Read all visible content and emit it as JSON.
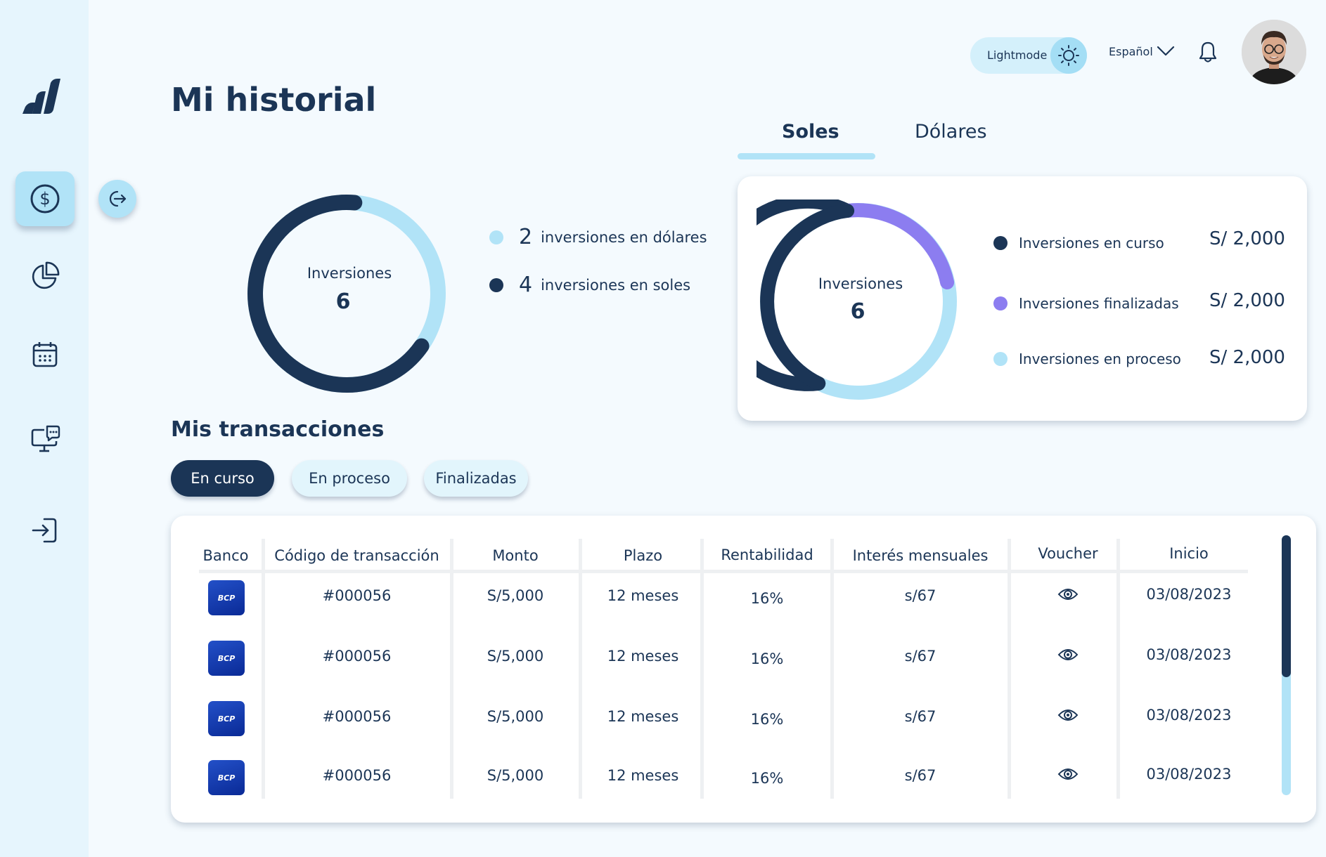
{
  "colors": {
    "navy": "#1b3556",
    "light_blue": "#b1e3f7",
    "purple": "#8c7df0",
    "sidebar_bg": "#e6f5fd",
    "page_bg": "#f4fafe"
  },
  "sidebar": {
    "logo_icon": "logo-bars-icon",
    "items": [
      {
        "icon": "dollar-icon",
        "active": true
      },
      {
        "icon": "pie-chart-icon",
        "active": false
      },
      {
        "icon": "calendar-icon",
        "active": false
      },
      {
        "icon": "monitor-chat-icon",
        "active": false
      },
      {
        "icon": "login-icon",
        "active": false
      }
    ],
    "collapse_icon": "exit-arrow-icon"
  },
  "header": {
    "theme_label": "Lightmode",
    "language": "Español",
    "notification_icon": "bell-icon"
  },
  "page": {
    "title": "Mi historial"
  },
  "currency_tabs": [
    {
      "label": "Soles",
      "active": true
    },
    {
      "label": "Dólares",
      "active": false
    }
  ],
  "summary_left": {
    "center_label": "Inversiones",
    "center_value": "6",
    "legend": [
      {
        "count": "2",
        "text": "inversiones en dólares",
        "color": "#b1e3f7"
      },
      {
        "count": "4",
        "text": "inversiones en soles",
        "color": "#1b3556"
      }
    ],
    "proportions": {
      "dolares": 2,
      "soles": 4
    }
  },
  "summary_right": {
    "center_label": "Inversiones",
    "center_value": "6",
    "legend": [
      {
        "text": "Inversiones en curso",
        "value": "S/ 2,000",
        "color": "#1b3556"
      },
      {
        "text": "Inversiones finalizadas",
        "value": "S/ 2,000",
        "color": "#8c7df0"
      },
      {
        "text": "Inversiones en proceso",
        "value": "S/ 2,000",
        "color": "#b1e3f7"
      }
    ]
  },
  "transactions": {
    "title": "Mis transacciones",
    "filters": [
      {
        "label": "En curso",
        "active": true
      },
      {
        "label": "En proceso",
        "active": false
      },
      {
        "label": "Finalizadas",
        "active": false
      }
    ],
    "columns": [
      "Banco",
      "Código de transacción",
      "Monto",
      "Plazo",
      "Rentabilidad",
      "Interés mensuales",
      "Voucher",
      "Inicio"
    ],
    "rows": [
      {
        "bank": "BCP",
        "code": "#000056",
        "amount": "S/5,000",
        "term": "12 meses",
        "rate": "16%",
        "interest": "s/67",
        "voucher_icon": "eye-icon",
        "start": "03/08/2023"
      },
      {
        "bank": "BCP",
        "code": "#000056",
        "amount": "S/5,000",
        "term": "12 meses",
        "rate": "16%",
        "interest": "s/67",
        "voucher_icon": "eye-icon",
        "start": "03/08/2023"
      },
      {
        "bank": "BCP",
        "code": "#000056",
        "amount": "S/5,000",
        "term": "12 meses",
        "rate": "16%",
        "interest": "s/67",
        "voucher_icon": "eye-icon",
        "start": "03/08/2023"
      },
      {
        "bank": "BCP",
        "code": "#000056",
        "amount": "S/5,000",
        "term": "12 meses",
        "rate": "16%",
        "interest": "s/67",
        "voucher_icon": "eye-icon",
        "start": "03/08/2023"
      }
    ]
  }
}
